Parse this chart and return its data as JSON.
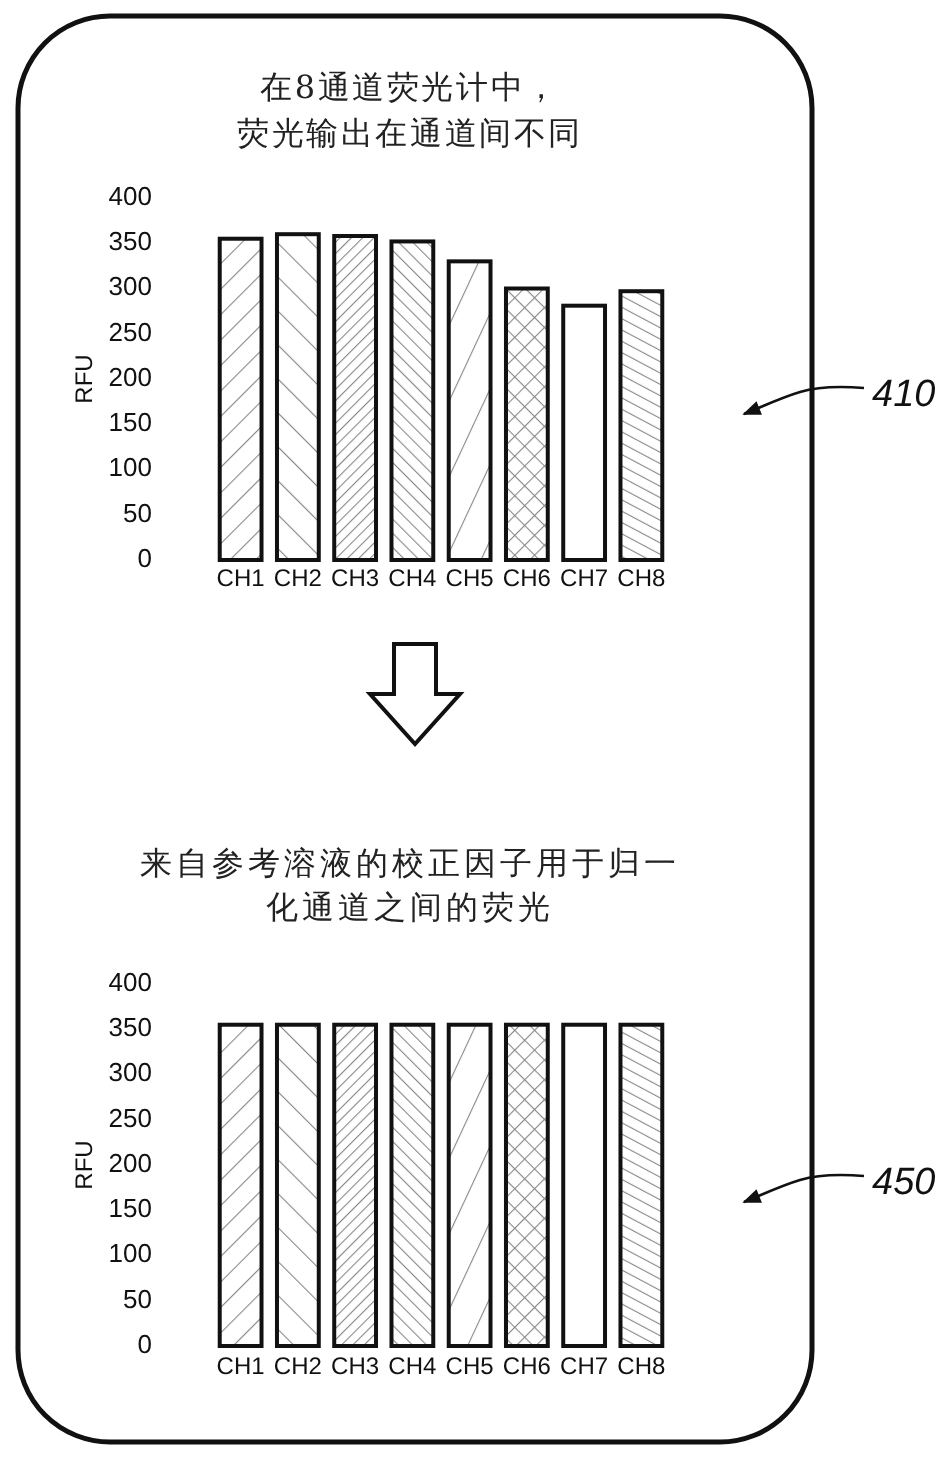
{
  "chart_data": [
    {
      "type": "bar",
      "title": "在8通道荧光计中，荧光输出在通道间不同",
      "ylabel": "RFU",
      "categories": [
        "CH1",
        "CH2",
        "CH3",
        "CH4",
        "CH5",
        "CH6",
        "CH7",
        "CH8"
      ],
      "values": [
        355,
        360,
        358,
        352,
        330,
        300,
        281,
        297
      ],
      "color": "#111111",
      "ylim": [
        0,
        400
      ],
      "yticks": [
        0,
        50,
        100,
        150,
        200,
        250,
        300,
        350,
        400
      ],
      "annotations": [
        "410"
      ]
    },
    {
      "type": "bar",
      "title": "来自参考溶液的校正因子用于归一化通道之间的荧光",
      "ylabel": "RFU",
      "categories": [
        "CH1",
        "CH2",
        "CH3",
        "CH4",
        "CH5",
        "CH6",
        "CH7",
        "CH8"
      ],
      "values": [
        355,
        355,
        355,
        355,
        355,
        355,
        355,
        355
      ],
      "color": "#111111",
      "ylim": [
        0,
        400
      ],
      "yticks": [
        0,
        50,
        100,
        150,
        200,
        250,
        300,
        350,
        400
      ],
      "annotations": [
        "450"
      ]
    }
  ]
}
